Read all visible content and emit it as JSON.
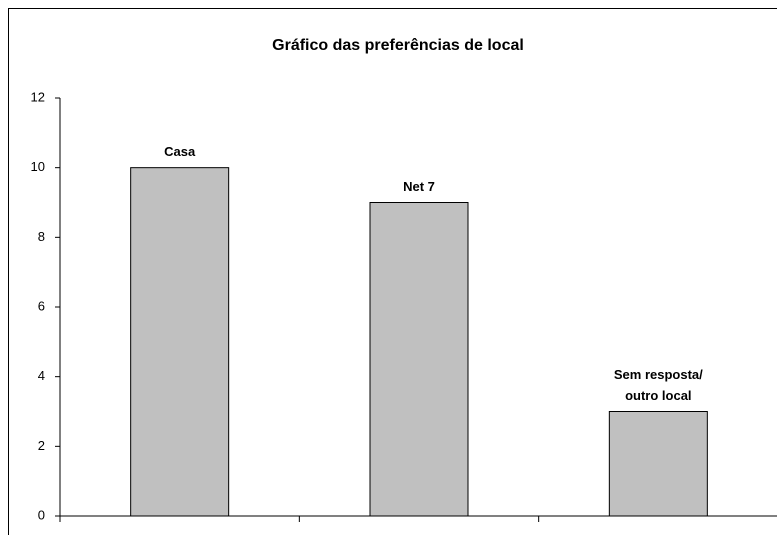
{
  "chart_data": {
    "type": "bar",
    "title": "Gráfico das preferências de local",
    "categories": [
      "Casa",
      "Net 7",
      "Sem resposta/\noutro local"
    ],
    "values": [
      10,
      9,
      3
    ],
    "color": "#c0c0c0",
    "ylim": [
      0,
      12
    ],
    "yticks": [
      0,
      2,
      4,
      6,
      8,
      10,
      12
    ],
    "grid": false
  }
}
